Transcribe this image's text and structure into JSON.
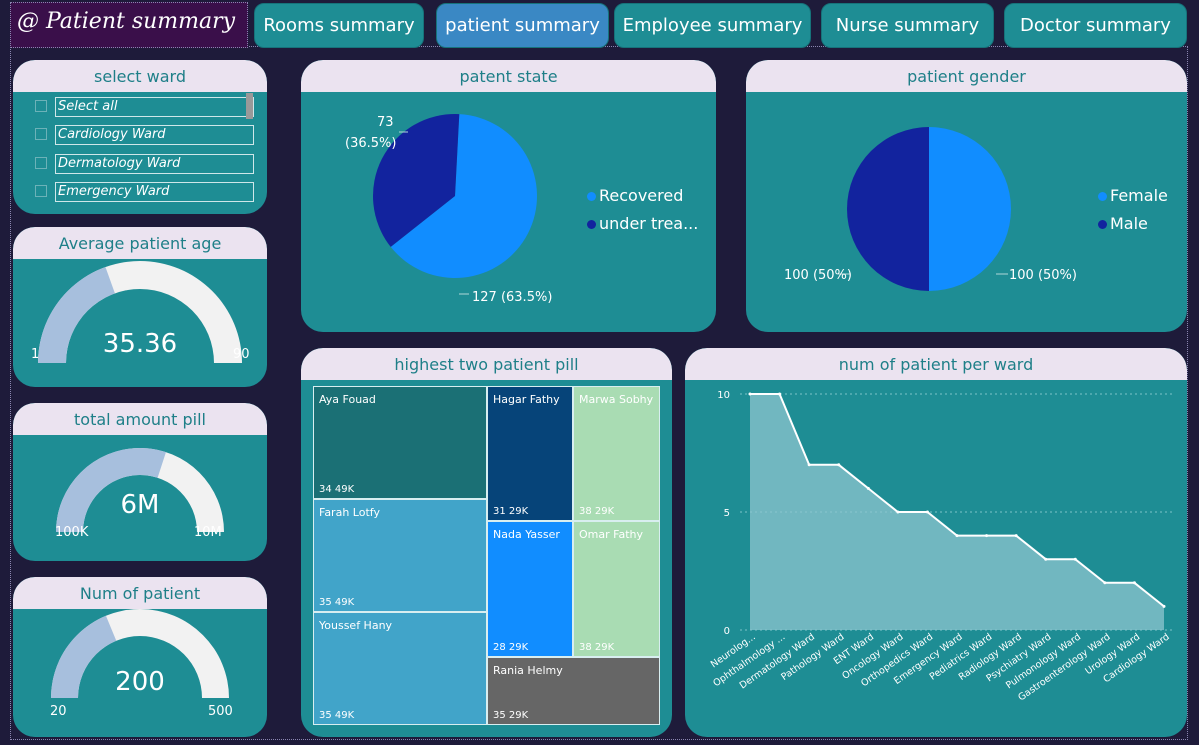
{
  "header": {
    "title": "@ Patient summary"
  },
  "nav": [
    {
      "label": "Rooms summary",
      "active": false
    },
    {
      "label": "patient summary",
      "active": true
    },
    {
      "label": "Employee summary",
      "active": false
    },
    {
      "label": "Nurse summary",
      "active": false
    },
    {
      "label": "Doctor summary",
      "active": false
    }
  ],
  "slicer": {
    "title": "select ward",
    "items": [
      "Select all",
      "Cardiology Ward",
      "Dermatology Ward",
      "Emergency Ward"
    ]
  },
  "avg_age": {
    "title": "Average patient age",
    "value": "35.36",
    "min": "1",
    "max": "90",
    "fill": 0.39
  },
  "total_pill": {
    "title": "total amount pill",
    "value": "6M",
    "min": "100K",
    "max": "10M",
    "fill": 0.6
  },
  "num_patient": {
    "title": "Num of patient",
    "value": "200",
    "min": "20",
    "max": "500",
    "fill": 0.375
  },
  "state": {
    "title": "patent state",
    "label_under_count": "73",
    "label_under_pct": "(36.5%)",
    "label_recovered": "127 (63.5%)",
    "legend": [
      "Recovered",
      "under trea..."
    ]
  },
  "gender": {
    "title": "patient gender",
    "label_male": "100 (50%)",
    "label_female": "100 (50%)",
    "legend": [
      "Female",
      "Male"
    ]
  },
  "pill": {
    "title": "highest two patient pill",
    "tiles": [
      {
        "name": "Aya Fouad",
        "value": "34 49K"
      },
      {
        "name": "Farah Lotfy",
        "value": "35 49K"
      },
      {
        "name": "Youssef Hany",
        "value": "35 49K"
      },
      {
        "name": "Hagar Fathy",
        "value": "31 29K"
      },
      {
        "name": "Marwa Sobhy",
        "value": "38 29K"
      },
      {
        "name": "Nada Yasser",
        "value": "28 29K"
      },
      {
        "name": "Omar Fathy",
        "value": "38 29K"
      },
      {
        "name": "Rania Helmy",
        "value": "35 29K"
      }
    ]
  },
  "ward_chart": {
    "title": "num of patient per ward"
  },
  "colors": {
    "teal": "#1e8d94",
    "header": "#ebe3f0",
    "dark_blue": "#12239e",
    "light_blue": "#118dff",
    "gauge_fill": "#a7bfdd",
    "gauge_track": "#f2f2f2"
  },
  "chart_data": [
    {
      "type": "pie",
      "title": "patent state",
      "categories": [
        "Recovered",
        "under treatment"
      ],
      "values": [
        127,
        73
      ],
      "legend": "right"
    },
    {
      "type": "pie",
      "title": "patient gender",
      "categories": [
        "Female",
        "Male"
      ],
      "values": [
        100,
        100
      ],
      "legend": "right"
    },
    {
      "type": "area",
      "title": "num of patient per ward",
      "categories": [
        "Neurolog...",
        "Ophthalmology ...",
        "Dermatology Ward",
        "Pathology Ward",
        "ENT Ward",
        "Oncology Ward",
        "Orthopedics Ward",
        "Emergency Ward",
        "Pediatrics Ward",
        "Radiology Ward",
        "Psychiatry Ward",
        "Pulmonology Ward",
        "Gastroenterology Ward",
        "Urology Ward",
        "Cardiology Ward"
      ],
      "values": [
        10,
        10,
        7,
        7,
        6,
        5,
        5,
        4,
        4,
        4,
        3,
        3,
        2,
        2,
        1
      ],
      "yticks": [
        "0",
        "5",
        "10"
      ],
      "ylim": [
        0,
        10
      ],
      "grid": true
    }
  ]
}
